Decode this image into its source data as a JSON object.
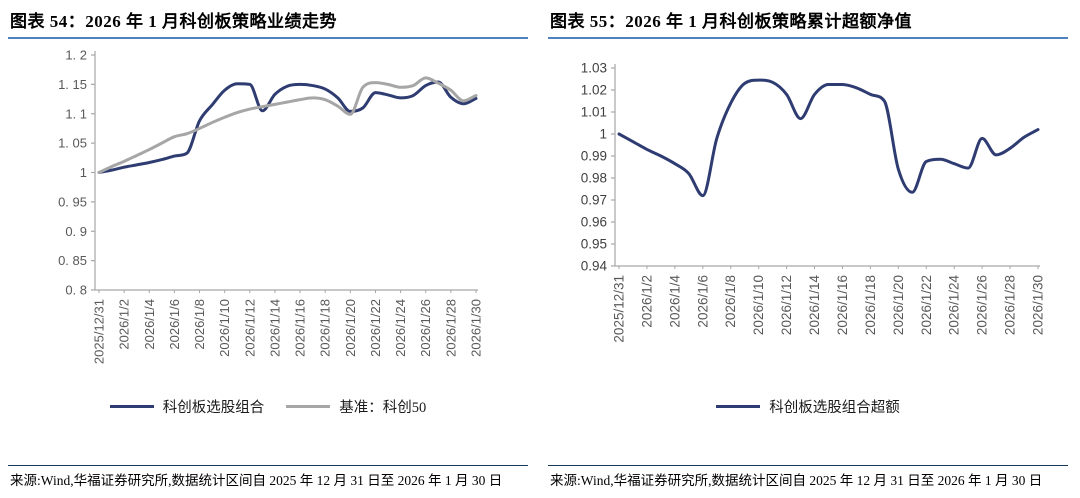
{
  "colors": {
    "primary_line": "#2e3c72",
    "benchmark_line": "#a6a6a6",
    "title_underline": "#4f81bd",
    "source_divider": "#16365c",
    "axis_line": "#a6a6a6",
    "left_tick_label": "#595959",
    "right_tick_label": "#404040",
    "x_label": "#595959"
  },
  "panels": [
    {
      "title": "图表 54：2026 年 1 月科创板策略业绩走势",
      "source": "来源:Wind,华福证券研究所,数据统计区间自 2025 年 12 月 31 日至 2026 年 1 月 30 日"
    },
    {
      "title": "图表 55：2026 年 1 月科创板策略累计超额净值",
      "source": "来源:Wind,华福证券研究所,数据统计区间自 2025 年 12 月 31 日至 2026 年 1 月 30 日"
    }
  ],
  "chart_data": [
    {
      "type": "line",
      "title": "2026 年 1 月科创板策略业绩走势",
      "grid": false,
      "legend_position": "bottom",
      "x_description": "daily net value, 2025/12/31 to 2026/1/30 (day index 0-30)",
      "x_range_days": 30,
      "x_tick_labels": [
        "2025/12/31",
        "2026/1/2",
        "2026/1/4",
        "2026/1/6",
        "2026/1/8",
        "2026/1/10",
        "2026/1/12",
        "2026/1/14",
        "2026/1/16",
        "2026/1/18",
        "2026/1/20",
        "2026/1/22",
        "2026/1/24",
        "2026/1/26",
        "2026/1/28",
        "2026/1/30"
      ],
      "ylim": [
        0.8,
        1.2
      ],
      "y_ticks": [
        1.2,
        1.15,
        1.1,
        1.05,
        1,
        0.95,
        0.9,
        0.85,
        0.8
      ],
      "y_tick_labels": [
        "1. 2",
        "1. 15",
        "1. 1",
        "1. 05",
        "1",
        "0. 95",
        "0. 9",
        "0. 85",
        "0. 8"
      ],
      "series": [
        {
          "name": "科创板选股组合",
          "color": "#2e3c72",
          "values": [
            1.0,
            1.004,
            1.009,
            1.013,
            1.017,
            1.022,
            1.028,
            1.033,
            1.088,
            1.115,
            1.14,
            1.151,
            1.15,
            1.105,
            1.133,
            1.147,
            1.15,
            1.148,
            1.142,
            1.127,
            1.104,
            1.11,
            1.136,
            1.132,
            1.127,
            1.131,
            1.148,
            1.154,
            1.128,
            1.117,
            1.126
          ]
        },
        {
          "name": "基准：科创50",
          "color": "#a6a6a6",
          "values": [
            1.0,
            1.01,
            1.019,
            1.029,
            1.039,
            1.05,
            1.061,
            1.066,
            1.075,
            1.085,
            1.094,
            1.102,
            1.108,
            1.112,
            1.116,
            1.12,
            1.124,
            1.127,
            1.124,
            1.113,
            1.099,
            1.145,
            1.153,
            1.15,
            1.145,
            1.148,
            1.161,
            1.152,
            1.14,
            1.122,
            1.131
          ]
        }
      ]
    },
    {
      "type": "line",
      "title": "2026 年 1 月科创板策略累计超额净值",
      "grid": false,
      "legend_position": "bottom",
      "x_description": "cumulative excess net value, 2025/12/31 to 2026/1/30 (day index 0-30)",
      "x_range_days": 30,
      "x_tick_labels": [
        "2025/12/31",
        "2026/1/2",
        "2026/1/4",
        "2026/1/6",
        "2026/1/8",
        "2026/1/10",
        "2026/1/12",
        "2026/1/14",
        "2026/1/16",
        "2026/1/18",
        "2026/1/20",
        "2026/1/22",
        "2026/1/24",
        "2026/1/26",
        "2026/1/28",
        "2026/1/30"
      ],
      "ylim": [
        0.94,
        1.03
      ],
      "y_ticks": [
        1.03,
        1.02,
        1.01,
        1,
        0.99,
        0.98,
        0.97,
        0.96,
        0.95,
        0.94
      ],
      "y_tick_labels": [
        "1.03",
        "1.02",
        "1.01",
        "1",
        "0.99",
        "0.98",
        "0.97",
        "0.96",
        "0.95",
        "0.94"
      ],
      "series": [
        {
          "name": "科创板选股组合超额",
          "color": "#2e3c72",
          "values": [
            1.0,
            0.9965,
            0.993,
            0.99,
            0.9865,
            0.982,
            0.972,
            0.998,
            1.014,
            1.023,
            1.0245,
            1.0235,
            1.018,
            1.007,
            1.018,
            1.0225,
            1.0225,
            1.021,
            1.018,
            1.015,
            0.984,
            0.9735,
            0.9875,
            0.9885,
            0.9865,
            0.9845,
            0.998,
            0.9905,
            0.9935,
            0.9985,
            1.002
          ]
        }
      ]
    }
  ]
}
